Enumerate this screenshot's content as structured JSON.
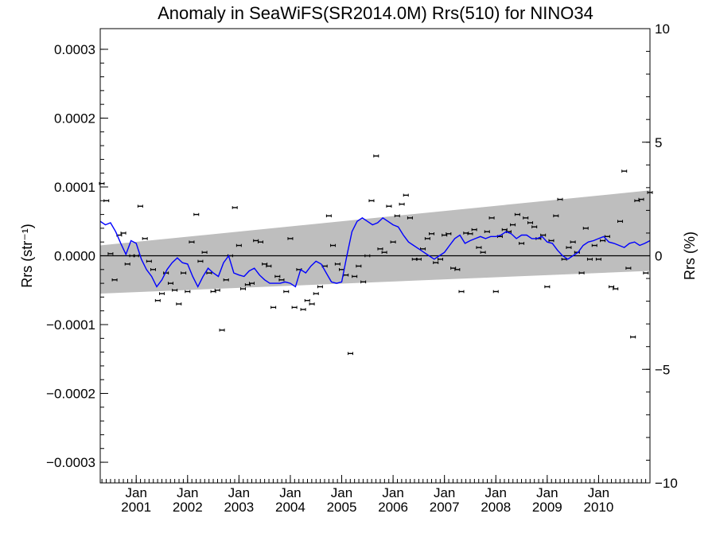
{
  "chart_data": {
    "type": "scatter",
    "title": "Anomaly in SeaWiFS(SR2014.0M) Rrs(510) for NINO34",
    "ylabel": "Rrs (str⁻¹)",
    "ylabel_right": "Rrs (%)",
    "ylim": [
      -0.00033,
      0.00033
    ],
    "ylim_right": [
      -10,
      10
    ],
    "xlim": [
      2000.3,
      2011.0
    ],
    "grid": false,
    "yticks": [
      -0.0003,
      -0.0002,
      -0.0001,
      0.0,
      0.0001,
      0.0002,
      0.0003
    ],
    "ytick_labels": [
      "−0.0003",
      "−0.0002",
      "−0.0001",
      "0.0000",
      "0.0001",
      "0.0002",
      "0.0003"
    ],
    "yticks_right": [
      -10,
      -5,
      0,
      5,
      10
    ],
    "ytick_labels_right": [
      "−10",
      "−5",
      "0",
      "5",
      "10"
    ],
    "xticks": [
      {
        "month": "Jan",
        "year": "2001",
        "x": 2001.0
      },
      {
        "month": "Jan",
        "year": "2002",
        "x": 2002.0
      },
      {
        "month": "Jan",
        "year": "2003",
        "x": 2003.0
      },
      {
        "month": "Jan",
        "year": "2004",
        "x": 2004.0
      },
      {
        "month": "Jan",
        "year": "2005",
        "x": 2005.0
      },
      {
        "month": "Jan",
        "year": "2006",
        "x": 2006.0
      },
      {
        "month": "Jan",
        "year": "2007",
        "x": 2007.0
      },
      {
        "month": "Jan",
        "year": "2008",
        "x": 2008.0
      },
      {
        "month": "Jan",
        "year": "2009",
        "x": 2009.0
      },
      {
        "month": "Jan",
        "year": "2010",
        "x": 2010.0
      }
    ],
    "band": {
      "x": [
        2000.3,
        2011.0
      ],
      "upper": [
        1.5e-05,
        9.5e-05
      ],
      "lower": [
        -5.5e-05,
        -2.2e-05
      ],
      "color": "#bebebe"
    },
    "zero_line": 0.0,
    "series": [
      {
        "kind": "scatter-errorbar",
        "color": "#000000",
        "x": [
          2000.33,
          2000.42,
          2000.5,
          2000.58,
          2000.67,
          2000.75,
          2000.83,
          2000.92,
          2001.0,
          2001.08,
          2001.17,
          2001.25,
          2001.33,
          2001.42,
          2001.5,
          2001.58,
          2001.67,
          2001.75,
          2001.83,
          2001.92,
          2002.0,
          2002.08,
          2002.17,
          2002.25,
          2002.33,
          2002.42,
          2002.5,
          2002.58,
          2002.67,
          2002.75,
          2002.83,
          2002.92,
          2003.0,
          2003.08,
          2003.17,
          2003.25,
          2003.33,
          2003.42,
          2003.5,
          2003.58,
          2003.67,
          2003.75,
          2003.83,
          2003.92,
          2004.0,
          2004.08,
          2004.17,
          2004.25,
          2004.33,
          2004.42,
          2004.5,
          2004.58,
          2004.67,
          2004.75,
          2004.83,
          2004.92,
          2005.0,
          2005.08,
          2005.17,
          2005.25,
          2005.33,
          2005.42,
          2005.5,
          2005.58,
          2005.67,
          2005.75,
          2005.83,
          2005.92,
          2006.0,
          2006.08,
          2006.17,
          2006.25,
          2006.33,
          2006.42,
          2006.5,
          2006.58,
          2006.67,
          2006.75,
          2006.83,
          2006.92,
          2007.0,
          2007.08,
          2007.17,
          2007.25,
          2007.33,
          2007.42,
          2007.5,
          2007.58,
          2007.67,
          2007.75,
          2007.83,
          2007.92,
          2008.0,
          2008.08,
          2008.17,
          2008.25,
          2008.33,
          2008.42,
          2008.5,
          2008.58,
          2008.67,
          2008.75,
          2008.83,
          2008.92,
          2009.0,
          2009.08,
          2009.17,
          2009.25,
          2009.33,
          2009.42,
          2009.5,
          2009.58,
          2009.67,
          2009.75,
          2009.83,
          2009.92,
          2010.0,
          2010.08,
          2010.17,
          2010.25,
          2010.33,
          2010.42,
          2010.5,
          2010.58,
          2010.67,
          2010.75,
          2010.83,
          2010.92,
          2011.0
        ],
        "y": [
          0.000105,
          8e-05,
          3e-06,
          -3.5e-05,
          3e-05,
          3.3e-05,
          -1.2e-05,
          0.0,
          0.0,
          7.2e-05,
          2.5e-05,
          -8e-06,
          -2e-05,
          -6.5e-05,
          -5.5e-05,
          -2.5e-05,
          -4e-05,
          -5e-05,
          -7e-05,
          -2.5e-05,
          -5.2e-05,
          2e-05,
          6e-05,
          -8e-06,
          5e-06,
          -2.5e-05,
          -5.2e-05,
          -5e-05,
          -0.000108,
          -3.5e-05,
          0.0,
          7e-05,
          1.5e-05,
          -4.8e-05,
          -4.2e-05,
          -4e-05,
          2.2e-05,
          2e-05,
          -1.2e-05,
          -1.5e-05,
          -7.5e-05,
          -3e-05,
          -3.5e-05,
          -5.2e-05,
          2.5e-05,
          -7.5e-05,
          -2e-05,
          -7.8e-05,
          -6.5e-05,
          -7e-05,
          -5.5e-05,
          -4.5e-05,
          -1.5e-05,
          5.8e-05,
          1.5e-05,
          -1.2e-05,
          -2e-05,
          -2.8e-05,
          -0.000142,
          -3e-05,
          -1.5e-05,
          -3.8e-05,
          0.0,
          8e-05,
          0.000145,
          1e-05,
          5e-06,
          7.2e-05,
          2e-05,
          5.8e-05,
          7.5e-05,
          8.8e-05,
          5.5e-05,
          -5e-06,
          -5e-06,
          1e-05,
          2.5e-05,
          3.2e-05,
          -1e-05,
          -5e-06,
          3e-05,
          3.2e-05,
          -1.8e-05,
          -2e-05,
          -5.2e-05,
          3.3e-05,
          3.2e-05,
          3.8e-05,
          1.2e-05,
          5e-06,
          3.5e-05,
          5.5e-05,
          -5.2e-05,
          2.8e-05,
          3.8e-05,
          3.5e-05,
          4.5e-05,
          6e-05,
          1.8e-05,
          5.5e-05,
          4.8e-05,
          4.2e-05,
          2.5e-05,
          3e-05,
          -4.5e-05,
          2.2e-05,
          5.8e-05,
          8.2e-05,
          -5e-06,
          1.2e-05,
          2e-05,
          5e-06,
          -2.5e-05,
          4e-05,
          -5e-06,
          1.5e-05,
          -5e-06,
          2.2e-05,
          2.8e-05,
          -4.5e-05,
          -4.8e-05,
          5e-05,
          0.000123,
          -1.8e-05,
          -0.000118,
          8e-05,
          8.2e-05,
          -2.5e-05,
          9.2e-05
        ]
      },
      {
        "kind": "line",
        "color": "#0000ff",
        "x": [
          2000.3,
          2000.4,
          2000.5,
          2000.6,
          2000.7,
          2000.8,
          2000.9,
          2001.0,
          2001.1,
          2001.2,
          2001.3,
          2001.4,
          2001.5,
          2001.6,
          2001.7,
          2001.8,
          2001.9,
          2002.0,
          2002.1,
          2002.2,
          2002.3,
          2002.4,
          2002.5,
          2002.6,
          2002.7,
          2002.8,
          2002.9,
          2003.0,
          2003.1,
          2003.2,
          2003.3,
          2003.4,
          2003.5,
          2003.6,
          2003.7,
          2003.8,
          2003.9,
          2004.0,
          2004.1,
          2004.2,
          2004.3,
          2004.4,
          2004.5,
          2004.6,
          2004.7,
          2004.8,
          2004.9,
          2005.0,
          2005.1,
          2005.2,
          2005.3,
          2005.4,
          2005.5,
          2005.6,
          2005.7,
          2005.8,
          2005.9,
          2006.0,
          2006.1,
          2006.2,
          2006.3,
          2006.4,
          2006.5,
          2006.6,
          2006.7,
          2006.8,
          2006.9,
          2007.0,
          2007.1,
          2007.2,
          2007.3,
          2007.4,
          2007.5,
          2007.6,
          2007.7,
          2007.8,
          2007.9,
          2008.0,
          2008.1,
          2008.2,
          2008.3,
          2008.4,
          2008.5,
          2008.6,
          2008.7,
          2008.8,
          2008.9,
          2009.0,
          2009.1,
          2009.2,
          2009.3,
          2009.4,
          2009.5,
          2009.6,
          2009.7,
          2009.8,
          2009.9,
          2010.0,
          2010.1,
          2010.2,
          2010.3,
          2010.4,
          2010.5,
          2010.6,
          2010.7,
          2010.8,
          2010.9,
          2011.0
        ],
        "y": [
          5e-05,
          4.5e-05,
          4.8e-05,
          3.5e-05,
          1.8e-05,
          2e-06,
          2.2e-05,
          1.8e-05,
          -5e-06,
          -2e-05,
          -3e-05,
          -4.5e-05,
          -3.5e-05,
          -2e-05,
          -1e-05,
          -3e-06,
          -1e-05,
          -1.2e-05,
          -3e-05,
          -4.5e-05,
          -3e-05,
          -1.8e-05,
          -2.5e-05,
          -3e-05,
          -1e-05,
          0.0,
          -2.5e-05,
          -2.8e-05,
          -3e-05,
          -2.2e-05,
          -1.8e-05,
          -2.8e-05,
          -3.5e-05,
          -4e-05,
          -4e-05,
          -4e-05,
          -3.8e-05,
          -4e-05,
          -4.5e-05,
          -2e-05,
          -2.5e-05,
          -1.5e-05,
          -8e-06,
          -1.2e-05,
          -2.5e-05,
          -3.8e-05,
          -4e-05,
          -3.8e-05,
          0.0,
          3.5e-05,
          5e-05,
          5.5e-05,
          5e-05,
          4.5e-05,
          4.8e-05,
          5.5e-05,
          5e-05,
          4.5e-05,
          4.2e-05,
          3e-05,
          2e-05,
          1.5e-05,
          1e-05,
          5e-06,
          0.0,
          -5e-06,
          0.0,
          5e-06,
          1.5e-05,
          2.5e-05,
          3e-05,
          1.8e-05,
          2.2e-05,
          2.5e-05,
          2.8e-05,
          2.5e-05,
          2.8e-05,
          2.8e-05,
          3e-05,
          3.5e-05,
          3.2e-05,
          2.5e-05,
          3e-05,
          3e-05,
          2.5e-05,
          2.5e-05,
          2.8e-05,
          2e-05,
          1.8e-05,
          8e-06,
          0.0,
          -5e-06,
          0.0,
          5e-06,
          1.5e-05,
          2e-05,
          2.2e-05,
          2.5e-05,
          2.8e-05,
          2e-05,
          1.8e-05,
          1.5e-05,
          1.2e-05,
          1.8e-05,
          2e-05,
          1.5e-05,
          1.8e-05,
          2.2e-05
        ]
      }
    ]
  }
}
